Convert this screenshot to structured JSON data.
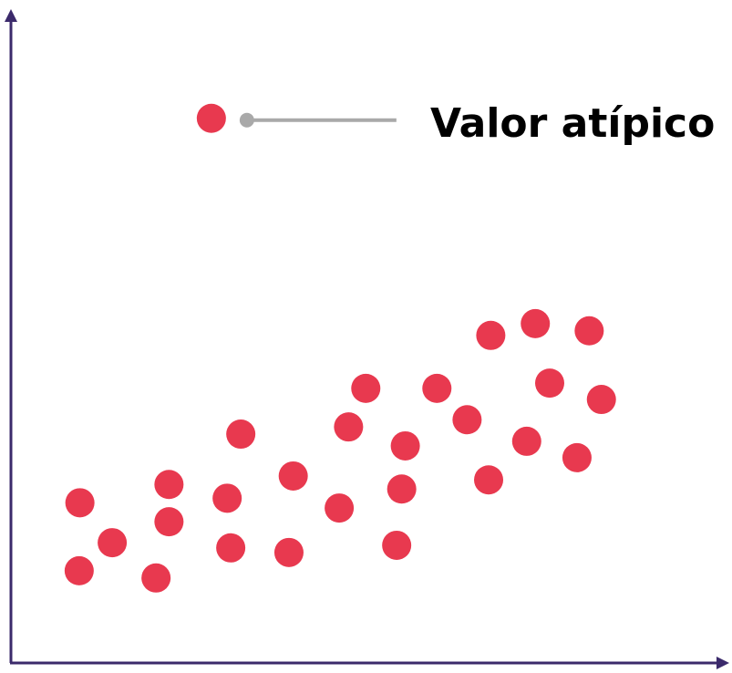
{
  "chart_data": {
    "type": "scatter",
    "title": "",
    "xlabel": "",
    "ylabel": "",
    "xlim": [
      0,
      100
    ],
    "ylim": [
      0,
      100
    ],
    "grid": false,
    "point_color": "#e8394f",
    "axis_color": "#3b2a6b",
    "leader_color": "#a9a9a9",
    "points": [
      {
        "x": 9.6,
        "y": 24.5
      },
      {
        "x": 14.1,
        "y": 18.4
      },
      {
        "x": 9.5,
        "y": 14.1
      },
      {
        "x": 22.0,
        "y": 27.3
      },
      {
        "x": 22.0,
        "y": 21.6
      },
      {
        "x": 20.2,
        "y": 13.0
      },
      {
        "x": 32.0,
        "y": 35.0
      },
      {
        "x": 30.1,
        "y": 25.2
      },
      {
        "x": 30.6,
        "y": 17.6
      },
      {
        "x": 39.3,
        "y": 28.6
      },
      {
        "x": 38.7,
        "y": 16.9
      },
      {
        "x": 49.4,
        "y": 42.0
      },
      {
        "x": 47.0,
        "y": 36.1
      },
      {
        "x": 45.7,
        "y": 23.7
      },
      {
        "x": 54.9,
        "y": 33.2
      },
      {
        "x": 54.4,
        "y": 26.6
      },
      {
        "x": 53.7,
        "y": 18.0
      },
      {
        "x": 59.3,
        "y": 42.0
      },
      {
        "x": 63.5,
        "y": 37.2
      },
      {
        "x": 66.8,
        "y": 50.1
      },
      {
        "x": 66.5,
        "y": 28.0
      },
      {
        "x": 73.0,
        "y": 51.9
      },
      {
        "x": 80.5,
        "y": 50.8
      },
      {
        "x": 75.0,
        "y": 42.8
      },
      {
        "x": 71.8,
        "y": 33.9
      },
      {
        "x": 82.2,
        "y": 40.3
      },
      {
        "x": 78.8,
        "y": 31.4
      }
    ],
    "outlier": {
      "x": 27.9,
      "y": 83.3,
      "label": "Valor atípico"
    }
  }
}
